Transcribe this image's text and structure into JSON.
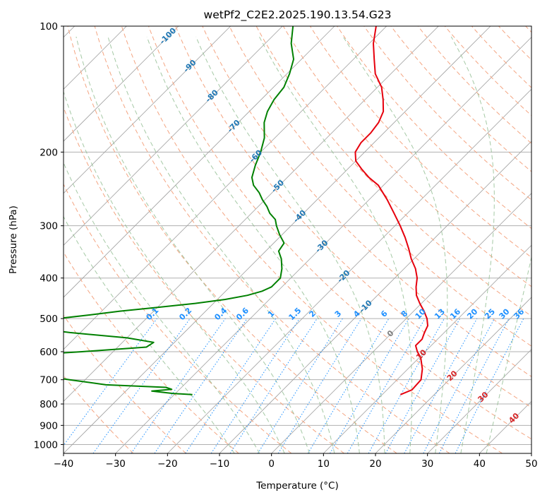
{
  "chart_data": {
    "type": "line",
    "title": "wetPf2_C2E2.2025.190.13.54.G23",
    "xlabel": "Temperature (°C)",
    "ylabel": "Pressure (hPa)",
    "xlim": [
      -40,
      50
    ],
    "ylim": [
      1050,
      100
    ],
    "y_scale": "log",
    "skew": true,
    "grid": true,
    "x_ticks": [
      "−40",
      "−30",
      "−20",
      "−10",
      "0",
      "10",
      "20",
      "30",
      "40",
      "50"
    ],
    "x_tick_values": [
      -40,
      -30,
      -20,
      -10,
      0,
      10,
      20,
      30,
      40,
      50
    ],
    "y_ticks": [
      "100",
      "200",
      "300",
      "400",
      "500",
      "600",
      "700",
      "800",
      "900",
      "1000"
    ],
    "y_tick_values": [
      100,
      200,
      300,
      400,
      500,
      600,
      700,
      800,
      900,
      1000
    ],
    "series": [
      {
        "color": "#e6000d",
        "role": "temperature",
        "p": [
          760,
          740,
          700,
          660,
          620,
          600,
          580,
          560,
          540,
          520,
          500,
          480,
          460,
          440,
          420,
          400,
          380,
          360,
          340,
          320,
          300,
          280,
          260,
          240,
          230,
          220,
          210,
          200,
          190,
          180,
          170,
          160,
          150,
          140,
          130,
          120,
          110,
          100
        ],
        "t": [
          13.5,
          14.8,
          14.6,
          12.8,
          10.3,
          8.5,
          7.0,
          7.0,
          6.2,
          5.5,
          4.0,
          2.0,
          -0.3,
          -2.5,
          -4.2,
          -5.7,
          -7.8,
          -10.5,
          -13.0,
          -15.8,
          -19.0,
          -22.6,
          -26.5,
          -31.0,
          -34.3,
          -37.2,
          -40.0,
          -41.8,
          -42.5,
          -42.5,
          -43.0,
          -44.2,
          -46.5,
          -49.2,
          -53.0,
          -56.0,
          -59.2,
          -62.0
        ]
      },
      {
        "color": "#008000",
        "role": "dewpoint",
        "p": [
          760,
          755,
          745,
          738,
          730,
          720,
          700,
          680,
          660,
          645,
          635,
          628,
          620,
          612,
          600,
          585,
          570,
          556,
          540,
          530,
          520,
          512,
          505,
          500,
          490,
          480,
          470,
          460,
          450,
          440,
          430,
          420,
          400,
          380,
          360,
          345,
          330,
          315,
          300,
          290,
          280,
          270,
          260,
          250,
          240,
          230,
          215,
          200,
          185,
          170,
          160,
          150,
          140,
          130,
          120,
          110,
          100
        ],
        "t": [
          -26.5,
          -30.5,
          -35.0,
          -31.5,
          -33.0,
          -45.0,
          -53.0,
          -60.5,
          -63.5,
          -65.5,
          -65.0,
          -66.5,
          -67.5,
          -66.5,
          -56.0,
          -44.5,
          -44.0,
          -50.0,
          -62.0,
          -68.0,
          -70.5,
          -69.8,
          -68.0,
          -67.0,
          -61.5,
          -56.5,
          -50.0,
          -43.5,
          -38.5,
          -35.0,
          -33.0,
          -32.0,
          -32.0,
          -33.5,
          -35.5,
          -37.5,
          -38.0,
          -40.5,
          -42.8,
          -44.2,
          -46.5,
          -48.3,
          -50.5,
          -52.5,
          -55.0,
          -56.8,
          -58.5,
          -60.0,
          -62.0,
          -65.0,
          -66.5,
          -67.5,
          -68.0,
          -69.5,
          -71.5,
          -75.0,
          -78.0
        ]
      }
    ],
    "dry_adiabats": [
      -30,
      -20,
      -10,
      0,
      10,
      20,
      30,
      40,
      50,
      60,
      70,
      80,
      90,
      100,
      110,
      120,
      130,
      140,
      150,
      160,
      170,
      180,
      190,
      200
    ],
    "moist_adiabats": [
      -10,
      -5,
      0,
      5,
      10,
      15,
      20,
      25,
      30,
      35,
      40
    ],
    "mixing_ratio": {
      "values": [
        0.1,
        0.2,
        0.4,
        0.6,
        1,
        1.5,
        2,
        3,
        4,
        6,
        8,
        10,
        13,
        16,
        20,
        25,
        30,
        36
      ],
      "labels": [
        "0.1",
        "0.2",
        "0.4",
        "0.6",
        "1",
        "1.5",
        "2",
        "3",
        "4",
        "6",
        "8",
        "10",
        "13",
        "16",
        "20",
        "25",
        "30",
        "36"
      ],
      "label_color": "#1e90ff"
    },
    "isotherm_labels": {
      "values": [
        -100,
        -90,
        -80,
        -70,
        -60,
        -50,
        -40,
        -30,
        -20,
        -10
      ],
      "labels": [
        "-100",
        "-90",
        "-80",
        "-70",
        "-60",
        "-50",
        "-40",
        "-30",
        "-20",
        "-10"
      ],
      "color": "#1f77b4"
    },
    "extra_labels": [
      {
        "text": "0",
        "value": 0,
        "color": "#808080"
      },
      {
        "text": "10",
        "value": 10,
        "color": "#d62728"
      },
      {
        "text": "20",
        "value": 20,
        "color": "#d62728"
      },
      {
        "text": "30",
        "value": 30,
        "color": "#d62728"
      },
      {
        "text": "40",
        "value": 40,
        "color": "#d62728"
      }
    ],
    "colors": {
      "grid": "#b0b0b0",
      "isotherm": "#a0a0a0",
      "dry_adiabat": "#f4a582",
      "moist_adiabat": "#8fbc8f",
      "mixing_ratio": "#1e90ff",
      "freezing_curve": "#d2b48c"
    }
  }
}
